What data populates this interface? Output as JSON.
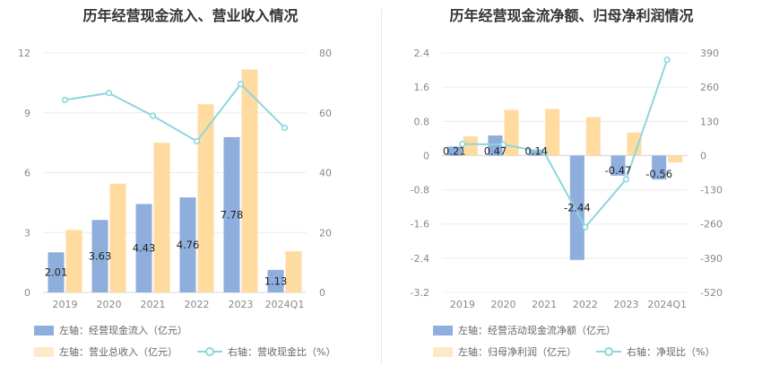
{
  "chart_data": [
    {
      "type": "bar",
      "title": "历年经营现金流入、营业收入情况",
      "categories": [
        "2019",
        "2020",
        "2021",
        "2022",
        "2023",
        "2024Q1"
      ],
      "left_axis": {
        "ticks": [
          "0",
          "3",
          "6",
          "9",
          "12"
        ],
        "range": [
          0,
          12
        ]
      },
      "right_axis": {
        "ticks": [
          "0",
          "20",
          "40",
          "60",
          "80"
        ],
        "range": [
          0,
          80
        ]
      },
      "series": [
        {
          "name": "经营现金流入",
          "axis": "left",
          "kind": "bar",
          "color": "#8eaedd",
          "values": [
            2.01,
            3.63,
            4.43,
            4.76,
            7.78,
            1.13
          ],
          "labels": [
            "2.01",
            "3.63",
            "4.43",
            "4.76",
            "7.78",
            "1.13"
          ]
        },
        {
          "name": "营业总收入",
          "axis": "left",
          "kind": "bar",
          "color": "#ffdba0",
          "values": [
            3.13,
            5.45,
            7.5,
            9.43,
            11.17,
            2.06
          ]
        },
        {
          "name": "营收现金比",
          "axis": "right",
          "kind": "line",
          "color": "#8dd6dd",
          "values": [
            64.3,
            66.6,
            59.0,
            50.5,
            69.6,
            55.0
          ]
        }
      ],
      "legend": [
        {
          "prefix": "左轴：",
          "label": "经营现金流入（亿元）"
        },
        {
          "prefix": "左轴：",
          "label": "营业总收入（亿元）"
        },
        {
          "prefix": "右轴：",
          "label": "营收现金比（%）"
        }
      ]
    },
    {
      "type": "bar",
      "title": "历年经营现金流净额、归母净利润情况",
      "categories": [
        "2019",
        "2020",
        "2021",
        "2022",
        "2023",
        "2024Q1"
      ],
      "left_axis": {
        "ticks": [
          "-3.2",
          "-2.4",
          "-1.6",
          "-0.8",
          "0",
          "0.8",
          "1.6",
          "2.4"
        ],
        "range": [
          -3.2,
          2.4
        ]
      },
      "right_axis": {
        "ticks": [
          "-520",
          "-390",
          "-260",
          "-130",
          "0",
          "130",
          "260",
          "390"
        ],
        "range": [
          -520,
          390
        ]
      },
      "series": [
        {
          "name": "经营活动现金流净额",
          "axis": "left",
          "kind": "bar",
          "color": "#8eaedd",
          "values": [
            0.21,
            0.47,
            0.14,
            -2.44,
            -0.47,
            -0.56
          ],
          "labels": [
            "0.21",
            "0.47",
            "0.14",
            "-2.44",
            "-0.47",
            "-0.56"
          ]
        },
        {
          "name": "归母净利润",
          "axis": "left",
          "kind": "bar",
          "color": "#ffdba0",
          "values": [
            0.45,
            1.07,
            1.09,
            0.9,
            0.54,
            -0.16
          ]
        },
        {
          "name": "净现比",
          "axis": "right",
          "kind": "line",
          "color": "#8dd6dd",
          "values": [
            44,
            42,
            12,
            -272,
            -90,
            364
          ]
        }
      ],
      "legend": [
        {
          "prefix": "左轴：",
          "label": "经营活动现金流净额（亿元）"
        },
        {
          "prefix": "左轴：",
          "label": "归母净利润（亿元）"
        },
        {
          "prefix": "右轴：",
          "label": "净现比（%）"
        }
      ]
    }
  ]
}
